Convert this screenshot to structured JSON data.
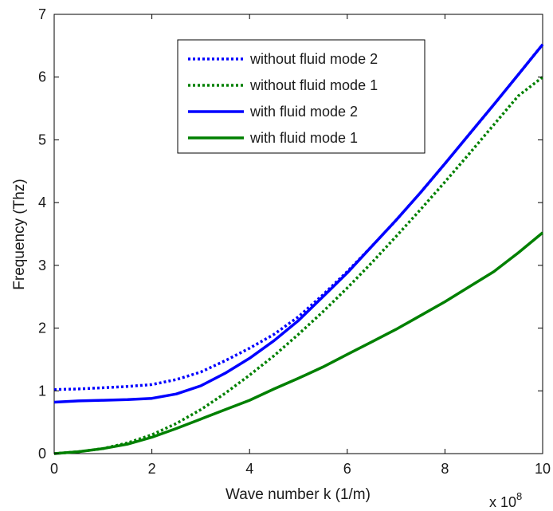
{
  "chart_data": {
    "type": "line",
    "title": "",
    "xlabel": "Wave number k (1/m)",
    "ylabel": "Frequency (Thz)",
    "x_multiplier_label": "x 10",
    "x_multiplier_exponent": "8",
    "xlim": [
      0,
      10
    ],
    "ylim": [
      0,
      7
    ],
    "x_ticks": [
      0,
      2,
      4,
      6,
      8,
      10
    ],
    "y_ticks": [
      0,
      1,
      2,
      3,
      4,
      5,
      6,
      7
    ],
    "grid": false,
    "legend_position": "top-center",
    "series": [
      {
        "name": "without fluid mode 2",
        "color": "#0000ff",
        "style": "dotted",
        "x": [
          0,
          0.5,
          1,
          1.5,
          2,
          2.5,
          3,
          3.5,
          4,
          4.5,
          5,
          5.5,
          6,
          6.5,
          7,
          7.5,
          8,
          8.5,
          9,
          9.5,
          10
        ],
        "y": [
          1.02,
          1.03,
          1.05,
          1.07,
          1.1,
          1.18,
          1.3,
          1.48,
          1.68,
          1.9,
          2.18,
          2.53,
          2.9,
          3.3,
          3.72,
          4.16,
          4.62,
          5.09,
          5.56,
          6.04,
          6.52
        ]
      },
      {
        "name": "without fluid mode 1",
        "color": "#008000",
        "style": "dotted",
        "x": [
          0,
          0.5,
          1,
          1.5,
          2,
          2.5,
          3,
          3.5,
          4,
          4.5,
          5,
          5.5,
          6,
          6.5,
          7,
          7.5,
          8,
          8.5,
          9,
          9.5,
          10
        ],
        "y": [
          0.0,
          0.03,
          0.08,
          0.17,
          0.3,
          0.48,
          0.7,
          0.96,
          1.25,
          1.56,
          1.9,
          2.26,
          2.64,
          3.04,
          3.46,
          3.89,
          4.33,
          4.78,
          5.24,
          5.7,
          6.0
        ]
      },
      {
        "name": "with fluid mode 2",
        "color": "#0000ff",
        "style": "solid",
        "x": [
          0,
          0.5,
          1,
          1.5,
          2,
          2.5,
          3,
          3.5,
          4,
          4.5,
          5,
          5.5,
          6,
          6.5,
          7,
          7.5,
          8,
          8.5,
          9,
          9.5,
          10
        ],
        "y": [
          0.82,
          0.84,
          0.85,
          0.86,
          0.88,
          0.95,
          1.08,
          1.28,
          1.52,
          1.8,
          2.12,
          2.5,
          2.88,
          3.3,
          3.72,
          4.16,
          4.62,
          5.09,
          5.56,
          6.04,
          6.52
        ]
      },
      {
        "name": "with fluid mode 1",
        "color": "#008000",
        "style": "solid",
        "x": [
          0,
          0.5,
          1,
          1.5,
          2,
          2.5,
          3,
          3.5,
          4,
          4.5,
          5,
          5.5,
          6,
          6.5,
          7,
          7.5,
          8,
          8.5,
          9,
          9.5,
          10
        ],
        "y": [
          0.0,
          0.03,
          0.08,
          0.15,
          0.26,
          0.4,
          0.55,
          0.7,
          0.85,
          1.03,
          1.2,
          1.38,
          1.58,
          1.78,
          1.98,
          2.2,
          2.42,
          2.66,
          2.9,
          3.2,
          3.52
        ]
      }
    ]
  }
}
